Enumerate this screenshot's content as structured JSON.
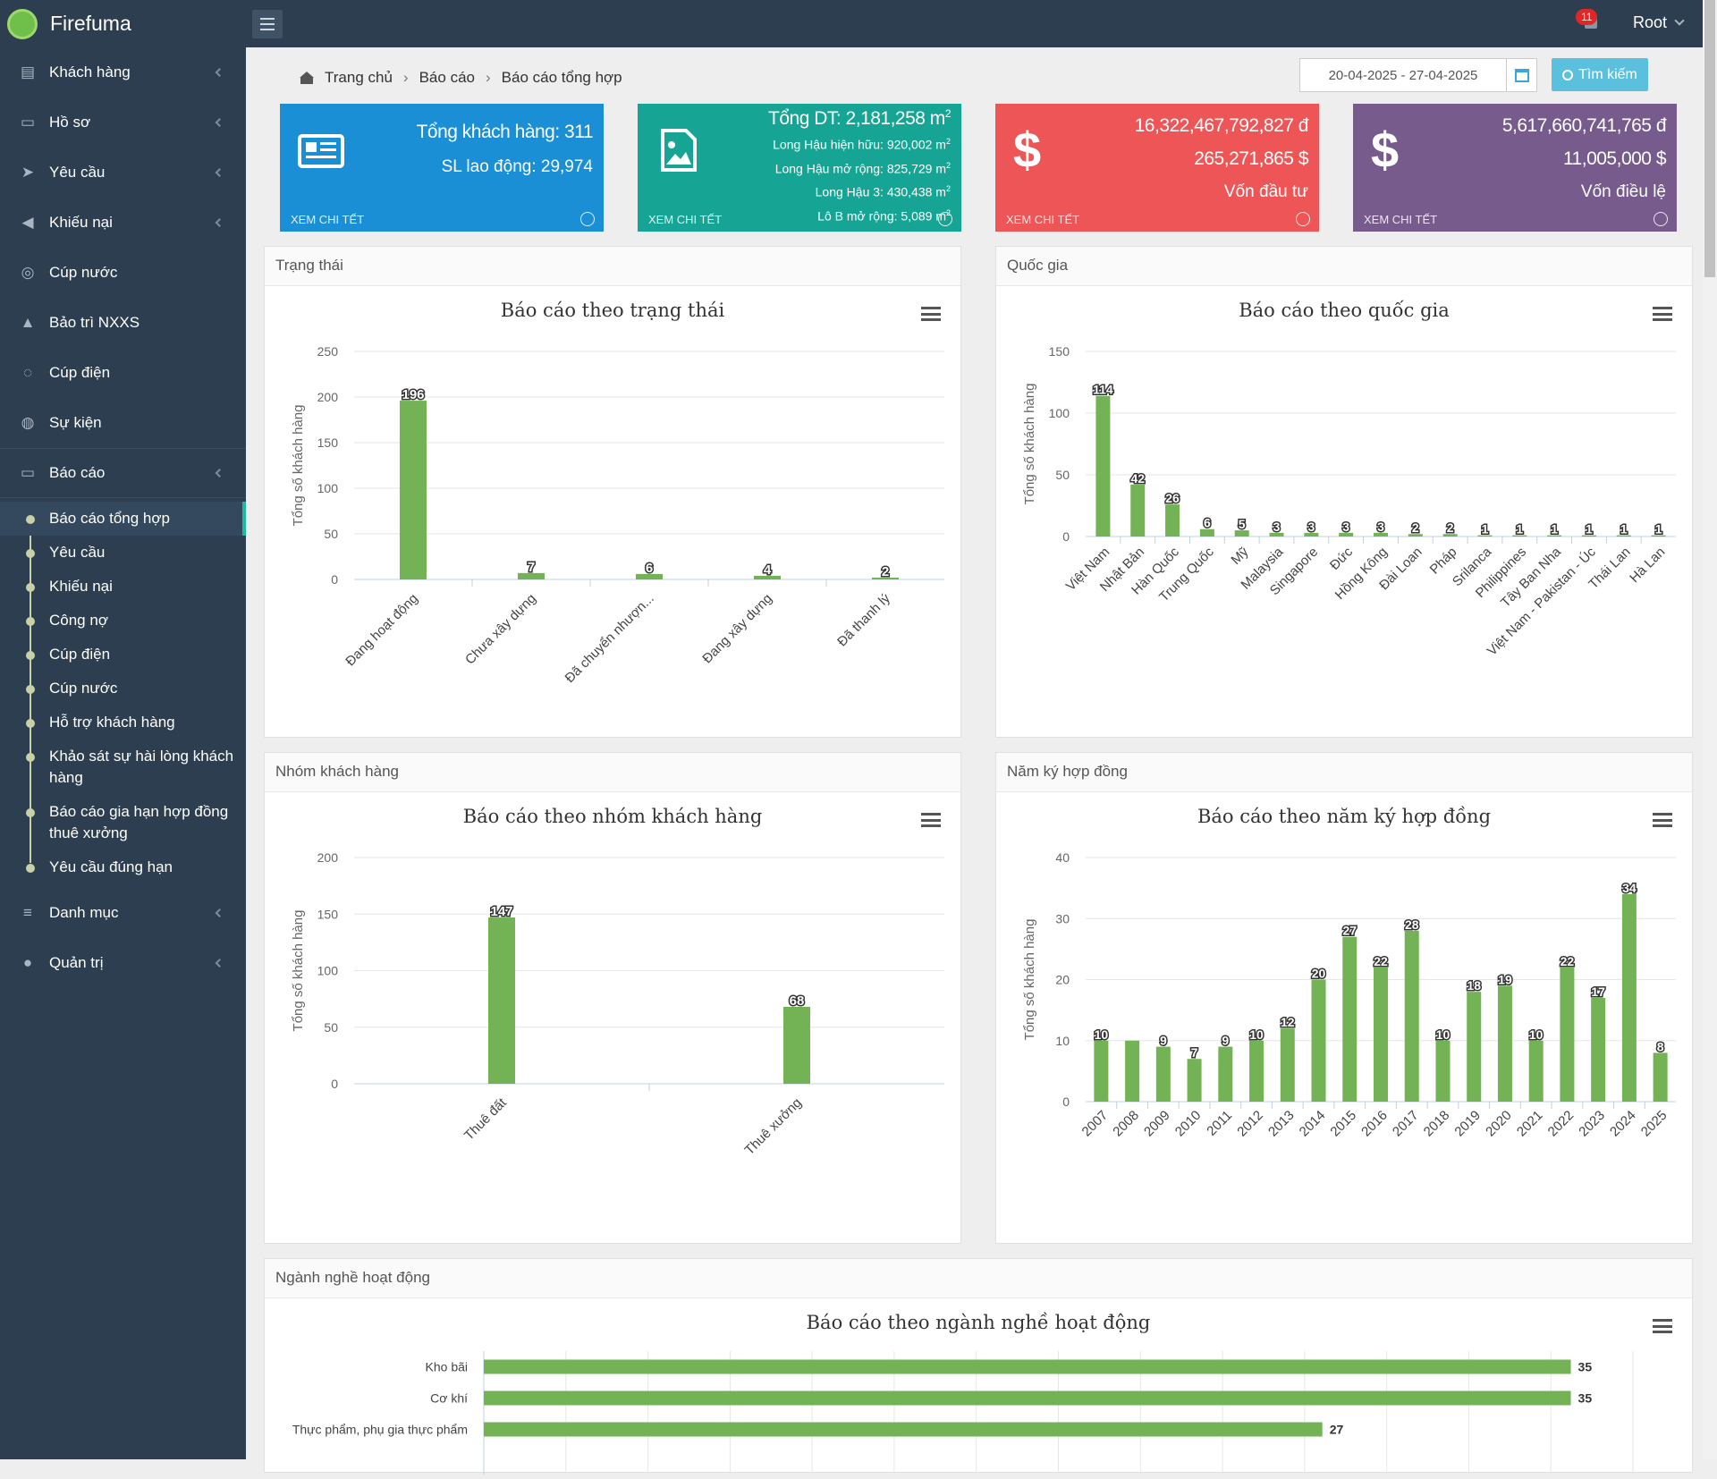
{
  "app": {
    "name": "Firefuma"
  },
  "header": {
    "notification_count": "11",
    "user": "Root"
  },
  "sidebar": {
    "items": [
      {
        "label": "Khách hàng",
        "icon": "id-card-icon",
        "glyph": "▤",
        "arrow": true
      },
      {
        "label": "Hồ sơ",
        "icon": "folder-icon",
        "glyph": "▭",
        "arrow": true
      },
      {
        "label": "Yêu cầu",
        "icon": "paper-plane-icon",
        "glyph": "➤",
        "arrow": true
      },
      {
        "label": "Khiếu nại",
        "icon": "bullhorn-icon",
        "glyph": "◀",
        "arrow": true
      },
      {
        "label": "Cúp nước",
        "icon": "life-ring-icon",
        "glyph": "◎",
        "arrow": false
      },
      {
        "label": "Bảo trì NXXS",
        "icon": "warning-icon",
        "glyph": "▲",
        "arrow": false
      },
      {
        "label": "Cúp điện",
        "icon": "lightbulb-icon",
        "glyph": "◌",
        "arrow": false
      },
      {
        "label": "Sự kiện",
        "icon": "globe-icon",
        "glyph": "◍",
        "arrow": false
      }
    ],
    "report": {
      "label": "Báo cáo",
      "icon": "folder-open-icon",
      "glyph": "▭"
    },
    "report_sub": [
      "Báo cáo tổng hợp",
      "Yêu cầu",
      "Khiếu nại",
      "Công nợ",
      "Cúp điện",
      "Cúp nước",
      "Hỗ trợ khách hàng",
      "Khảo sát sự hài lòng khách hàng",
      "Báo cáo gia hạn hợp đồng thuê xưởng",
      "Yêu cầu đúng hạn"
    ],
    "bottom": [
      {
        "label": "Danh mục",
        "icon": "sliders-icon",
        "glyph": "≡"
      },
      {
        "label": "Quản trị",
        "icon": "user-icon",
        "glyph": "●"
      }
    ]
  },
  "breadcrumb": [
    "Trang chủ",
    "Báo cáo",
    "Báo cáo tổng hợp"
  ],
  "toolbar": {
    "date_range": "20-04-2025 - 27-04-2025",
    "search_label": "Tìm kiếm"
  },
  "stats": [
    {
      "lines": [
        "Tổng khách hàng: 311",
        "SL lao động: 29,974"
      ],
      "footer": "XEM CHI TẾT",
      "color": "#1b8fd6"
    },
    {
      "title": "Tổng DT: 2,181,258 m",
      "lines": [
        "Long Hậu hiện hữu: 920,002 m",
        "Long Hậu mở rộng: 825,729 m",
        "Long Hậu 3: 430,438 m",
        "Lô B mở rộng: 5,089 m"
      ],
      "sup": "2",
      "footer": "XEM CHI TẾT",
      "color": "#16a594"
    },
    {
      "lines": [
        "16,322,467,792,827 đ",
        "265,271,865 $",
        "Vốn đầu tư"
      ],
      "footer": "XEM CHI TẾT",
      "color": "#ee5556"
    },
    {
      "lines": [
        "5,617,660,741,765 đ",
        "11,005,000 $",
        "Vốn điều lệ"
      ],
      "footer": "XEM CHI TẾT",
      "color": "#765b8c"
    }
  ],
  "panels": {
    "status": "Trạng thái",
    "country": "Quốc gia",
    "group": "Nhóm khách hàng",
    "year": "Năm ký hợp đồng",
    "industry": "Ngành nghề hoạt động"
  },
  "chart_data": [
    {
      "type": "bar",
      "title": "Báo cáo theo trạng thái",
      "ylabel": "Tổng số khách hàng",
      "categories": [
        "Đang hoạt động",
        "Chưa xây dựng",
        "Đã chuyển nhượn...",
        "Đang xây dựng",
        "Đã thanh lý"
      ],
      "values": [
        196,
        7,
        6,
        4,
        2
      ],
      "ylim": [
        0,
        250
      ],
      "yticks": [
        0,
        50,
        100,
        150,
        200,
        250
      ],
      "color": "#73b356"
    },
    {
      "type": "bar",
      "title": "Báo cáo theo quốc gia",
      "ylabel": "Tổng số khách hàng",
      "categories": [
        "Việt Nam",
        "Nhật Bản",
        "Hàn Quốc",
        "Trung Quốc",
        "Mỹ",
        "Malaysia",
        "Singapore",
        "Đức",
        "Hồng Kông",
        "Đài Loan",
        "Pháp",
        "Srilanca",
        "Philippines",
        "Tây Ban Nha",
        "Việt Nam - Pakistan - Úc",
        "Thái Lan",
        "Hà Lan"
      ],
      "values": [
        114,
        42,
        26,
        6,
        5,
        3,
        3,
        3,
        3,
        2,
        2,
        1,
        1,
        1,
        1,
        1,
        1
      ],
      "ylim": [
        0,
        150
      ],
      "yticks": [
        0,
        50,
        100,
        150
      ],
      "color": "#73b356"
    },
    {
      "type": "bar",
      "title": "Báo cáo theo nhóm khách hàng",
      "ylabel": "Tổng số khách hàng",
      "categories": [
        "Thuê đất",
        "Thuê xưởng"
      ],
      "values": [
        147,
        68
      ],
      "ylim": [
        0,
        200
      ],
      "yticks": [
        0,
        50,
        100,
        150,
        200
      ],
      "color": "#73b356"
    },
    {
      "type": "bar",
      "title": "Báo cáo theo năm ký hợp đồng",
      "ylabel": "Tổng số khách hàng",
      "categories": [
        "2007",
        "2008",
        "2009",
        "2010",
        "2011",
        "2012",
        "2013",
        "2014",
        "2015",
        "2016",
        "2017",
        "2018",
        "2019",
        "2020",
        "2021",
        "2022",
        "2023",
        "2024",
        "2025"
      ],
      "values": [
        10,
        10,
        9,
        7,
        9,
        10,
        12,
        20,
        27,
        22,
        28,
        10,
        18,
        19,
        10,
        22,
        17,
        34,
        8
      ],
      "labels": [
        "10",
        "",
        "9",
        "7",
        "9",
        "10",
        "12",
        "20",
        "27",
        "22",
        "28",
        "10",
        "18",
        "19",
        "10",
        "22",
        "17",
        "34",
        "8"
      ],
      "ylim": [
        0,
        40
      ],
      "yticks": [
        0,
        10,
        20,
        30,
        40
      ],
      "color": "#73b356"
    },
    {
      "type": "bar",
      "orientation": "horizontal",
      "title": "Báo cáo theo ngành nghề hoạt động",
      "categories": [
        "Kho bãi",
        "Cơ khí",
        "Thực phẩm, phụ gia thực phẩm"
      ],
      "values": [
        35,
        35,
        27
      ],
      "xlim": [
        0,
        37
      ],
      "color": "#73b356"
    }
  ]
}
